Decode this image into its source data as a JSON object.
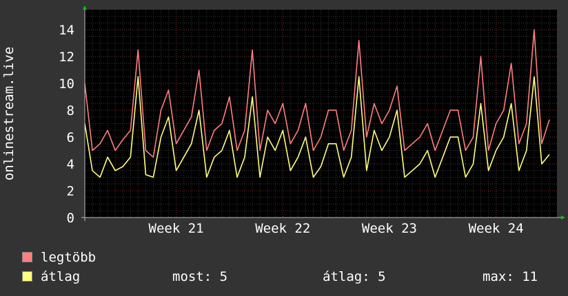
{
  "chart_data": {
    "type": "line",
    "ylabel": "onlinestream.live",
    "ylim": [
      0,
      15.5
    ],
    "yticks": [
      0,
      2,
      4,
      6,
      8,
      10,
      12,
      14
    ],
    "xlim": [
      0,
      31
    ],
    "week_ticks": [
      {
        "label": "Week 21",
        "x": 6
      },
      {
        "label": "Week 22",
        "x": 13
      },
      {
        "label": "Week 23",
        "x": 20
      },
      {
        "label": "Week 24",
        "x": 27
      }
    ],
    "grid": true,
    "background": "#000000",
    "series": [
      {
        "name": "legtöbb",
        "color": "#ff7f7f",
        "x": [
          0,
          0.5,
          1,
          1.5,
          2,
          2.5,
          3,
          3.5,
          4,
          4.5,
          5,
          5.5,
          6,
          6.5,
          7,
          7.5,
          8,
          8.5,
          9,
          9.5,
          10,
          10.5,
          11,
          11.5,
          12,
          12.5,
          13,
          13.5,
          14,
          14.5,
          15,
          15.5,
          16,
          16.5,
          17,
          17.5,
          18,
          18.5,
          19,
          19.5,
          20,
          20.5,
          21,
          21.5,
          22,
          22.5,
          23,
          23.5,
          24,
          24.5,
          25,
          25.5,
          26,
          26.5,
          27,
          27.5,
          28,
          28.5,
          29,
          29.5,
          30,
          30.5
        ],
        "values": [
          10,
          5,
          5.5,
          6.5,
          5,
          5.8,
          6.5,
          12.5,
          5,
          4.5,
          8,
          9.5,
          5.5,
          6.5,
          7.5,
          11,
          5,
          6.5,
          7,
          9,
          5,
          6.5,
          12.5,
          5,
          8,
          7,
          8.5,
          5.5,
          6.5,
          8.5,
          5,
          6,
          8,
          8,
          5,
          6.5,
          13.2,
          6,
          8.5,
          7,
          8,
          9.8,
          5,
          5.5,
          6,
          7,
          5,
          6.5,
          8,
          8,
          5,
          6,
          12,
          5,
          7,
          8,
          11.5,
          5.5,
          7,
          14,
          5.5,
          7.3
        ]
      },
      {
        "name": "átlag",
        "color": "#ffff7f",
        "x": [
          0,
          0.5,
          1,
          1.5,
          2,
          2.5,
          3,
          3.5,
          4,
          4.5,
          5,
          5.5,
          6,
          6.5,
          7,
          7.5,
          8,
          8.5,
          9,
          9.5,
          10,
          10.5,
          11,
          11.5,
          12,
          12.5,
          13,
          13.5,
          14,
          14.5,
          15,
          15.5,
          16,
          16.5,
          17,
          17.5,
          18,
          18.5,
          19,
          19.5,
          20,
          20.5,
          21,
          21.5,
          22,
          22.5,
          23,
          23.5,
          24,
          24.5,
          25,
          25.5,
          26,
          26.5,
          27,
          27.5,
          28,
          28.5,
          29,
          29.5,
          30,
          30.5
        ],
        "values": [
          7,
          3.5,
          3,
          4.5,
          3.5,
          3.8,
          4.5,
          10.5,
          3.2,
          3,
          6,
          7.5,
          3.5,
          4.5,
          5.5,
          8,
          3,
          4.5,
          5,
          6.5,
          3,
          4.5,
          9,
          3,
          6,
          5,
          6.5,
          3.5,
          4.5,
          6,
          3,
          3.8,
          5.5,
          5.5,
          3,
          4.5,
          10.5,
          3.5,
          6.5,
          5,
          6,
          8,
          3,
          3.5,
          4,
          5,
          3,
          4.5,
          6,
          6,
          3,
          4,
          8.5,
          3.5,
          5,
          6,
          8.5,
          3.5,
          5,
          10.5,
          4,
          4.7
        ]
      }
    ]
  },
  "legend": [
    {
      "label": "legtöbb",
      "color": "#ff7f7f"
    },
    {
      "label": "átlag",
      "color": "#ffff7f"
    }
  ],
  "stats": {
    "most": "most: 5",
    "atlag": "átlag: 5",
    "max": "max: 11"
  }
}
